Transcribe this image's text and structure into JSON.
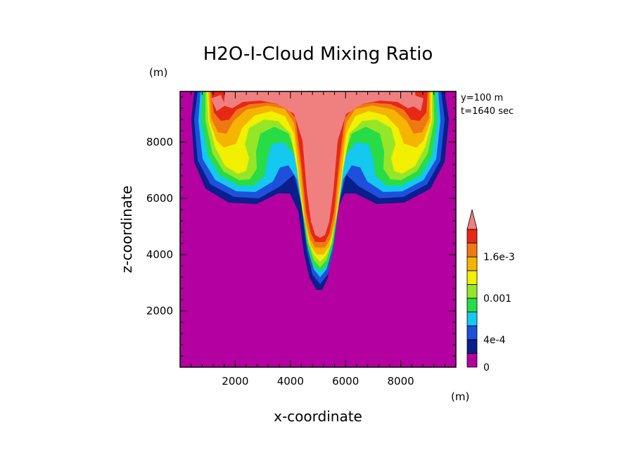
{
  "chart_data": {
    "type": "heatmap",
    "title": "H2O-I-Cloud Mixing Ratio",
    "xlabel": "x-coordinate",
    "ylabel": "z-coordinate",
    "x_unit": "(m)",
    "y_unit": "(m)",
    "annotations": [
      "y=100 m",
      "t=1640 sec"
    ],
    "xlim": [
      0,
      10000
    ],
    "ylim": [
      0,
      9800
    ],
    "xticks": [
      2000,
      4000,
      6000,
      8000
    ],
    "yticks": [
      2000,
      4000,
      6000,
      8000
    ],
    "colorbar": {
      "levels": [
        0,
        0.0002,
        0.0004,
        0.0006,
        0.0008,
        0.001,
        0.0012,
        0.0014,
        0.0016,
        0.0018,
        0.002
      ],
      "tick_labels": [
        {
          "value": 0,
          "label": "0"
        },
        {
          "value": 0.0004,
          "label": "4e-4"
        },
        {
          "value": 0.001,
          "label": "0.001"
        },
        {
          "value": 0.0016,
          "label": "1.6e-3"
        }
      ],
      "colors": [
        "#b400a0",
        "#0a1e8c",
        "#1e50dc",
        "#14c8f0",
        "#28dc46",
        "#96e628",
        "#f0f000",
        "#f5b400",
        "#f07814",
        "#e62814",
        "#f08080"
      ],
      "extend": "max"
    },
    "field_description_levels": {
      "background": 0,
      "updraft_core_max_level": 10
    }
  }
}
